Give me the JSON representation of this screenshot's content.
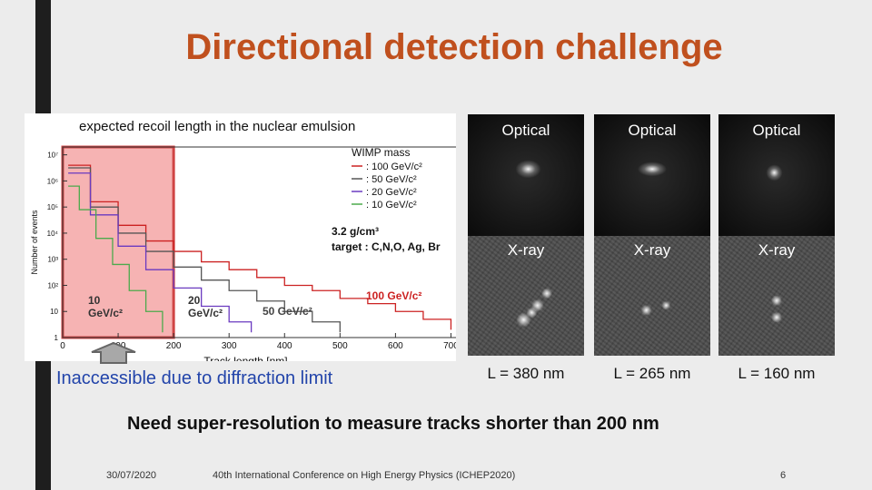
{
  "slide": {
    "title": "Directional detection challenge",
    "footer_date": "30/07/2020",
    "footer_event": "40th International Conference on High Energy Physics (ICHEP2020)",
    "page_number": "6",
    "inaccessible_note": "Inaccessible due to diffraction limit",
    "conclusion": "Need super-resolution to measure tracks shorter than 200 nm",
    "accent_color": "#c0501e"
  },
  "chart_data": {
    "type": "line",
    "title": "expected recoil length in the nuclear emulsion",
    "xlabel": "Track length [nm]",
    "ylabel": "Number of events",
    "xlim": [
      0,
      750
    ],
    "ylim_log10": [
      0,
      7.3
    ],
    "x_ticks": [
      "0",
      "100",
      "200",
      "300",
      "400",
      "500",
      "600",
      "700"
    ],
    "y_ticks": [
      "1",
      "10",
      "10²",
      "10³",
      "10⁴",
      "10⁵",
      "10⁶",
      "10⁷"
    ],
    "legend_title": "WIMP mass",
    "legend_position": "top-right",
    "density_note": "3.2 g/cm³",
    "target_note": "target : C,N,O, Ag, Br",
    "shaded_region_nm": [
      0,
      200
    ],
    "shaded_region_color": "#f4a6a6",
    "annotations": [
      "10 GeV/c²",
      "20 GeV/c²",
      "50 GeV/c²",
      "100 GeV/c²"
    ],
    "series": [
      {
        "name": "100 GeV/c²",
        "color": "#cc2222",
        "x": [
          10,
          50,
          100,
          150,
          200,
          250,
          300,
          350,
          400,
          450,
          500,
          550,
          600,
          650,
          700
        ],
        "y_log10": [
          6.6,
          5.2,
          4.3,
          3.7,
          3.3,
          2.9,
          2.6,
          2.3,
          2.0,
          1.8,
          1.5,
          1.3,
          1.0,
          0.7,
          0.3
        ]
      },
      {
        "name": "50 GeV/c²",
        "color": "#555555",
        "x": [
          10,
          50,
          100,
          150,
          200,
          250,
          300,
          350,
          400,
          450,
          500
        ],
        "y_log10": [
          6.5,
          5.0,
          4.0,
          3.3,
          2.7,
          2.2,
          1.8,
          1.4,
          1.0,
          0.6,
          0.2
        ]
      },
      {
        "name": "20 GeV/c²",
        "color": "#6a3ac0",
        "x": [
          10,
          50,
          100,
          150,
          200,
          250,
          300,
          340
        ],
        "y_log10": [
          6.3,
          4.7,
          3.5,
          2.6,
          1.9,
          1.2,
          0.6,
          0.2
        ]
      },
      {
        "name": "10 GeV/c²",
        "color": "#4caa4c",
        "x": [
          10,
          30,
          60,
          90,
          120,
          150,
          180
        ],
        "y_log10": [
          5.8,
          4.9,
          3.8,
          2.8,
          1.8,
          1.0,
          0.2
        ]
      }
    ]
  },
  "panels": {
    "columns": [
      {
        "optical_label": "Optical",
        "xray_label": "X-ray",
        "length": "L = 380 nm"
      },
      {
        "optical_label": "Optical",
        "xray_label": "X-ray",
        "length": "L = 265 nm"
      },
      {
        "optical_label": "Optical",
        "xray_label": "X-ray",
        "length": "L = 160 nm"
      }
    ]
  }
}
